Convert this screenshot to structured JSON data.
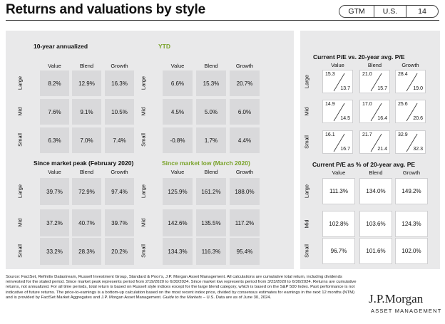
{
  "title": "Returns and valuations by style",
  "tags": [
    "GTM",
    "U.S.",
    "14"
  ],
  "col_headers": [
    "Value",
    "Blend",
    "Growth"
  ],
  "row_headers": [
    "Large",
    "Mid",
    "Small"
  ],
  "tables": {
    "ten_year": {
      "title": "10-year annualized",
      "rows": [
        [
          "8.2%",
          "12.9%",
          "16.3%"
        ],
        [
          "7.6%",
          "9.1%",
          "10.5%"
        ],
        [
          "6.3%",
          "7.0%",
          "7.4%"
        ]
      ]
    },
    "ytd": {
      "title": "YTD",
      "rows": [
        [
          "6.6%",
          "15.3%",
          "20.7%"
        ],
        [
          "4.5%",
          "5.0%",
          "6.0%"
        ],
        [
          "-0.8%",
          "1.7%",
          "4.4%"
        ]
      ]
    },
    "since_peak": {
      "title": "Since market peak (February 2020)",
      "rows": [
        [
          "39.7%",
          "72.9%",
          "97.4%"
        ],
        [
          "37.2%",
          "40.7%",
          "39.7%"
        ],
        [
          "33.2%",
          "28.3%",
          "20.2%"
        ]
      ]
    },
    "since_low": {
      "title": "Since market low (March 2020)",
      "rows": [
        [
          "125.9%",
          "161.2%",
          "188.0%"
        ],
        [
          "142.6%",
          "135.5%",
          "117.2%"
        ],
        [
          "134.3%",
          "116.3%",
          "95.4%"
        ]
      ]
    },
    "pe_vs_avg": {
      "title": "Current P/E vs. 20-year avg. P/E",
      "rows": [
        [
          [
            "15.3",
            "13.7"
          ],
          [
            "21.0",
            "15.7"
          ],
          [
            "28.4",
            "19.0"
          ]
        ],
        [
          [
            "14.9",
            "14.5"
          ],
          [
            "17.0",
            "16.4"
          ],
          [
            "25.6",
            "20.6"
          ]
        ],
        [
          [
            "16.1",
            "16.7"
          ],
          [
            "21.7",
            "21.4"
          ],
          [
            "32.9",
            "32.3"
          ]
        ]
      ]
    },
    "pe_pct": {
      "title": "Current P/E as % of 20-year avg. PE",
      "rows": [
        [
          "111.3%",
          "134.0%",
          "149.2%"
        ],
        [
          "102.8%",
          "103.6%",
          "124.3%"
        ],
        [
          "96.7%",
          "101.6%",
          "102.0%"
        ]
      ]
    }
  },
  "footer": {
    "text": "Source: FactSet, Refinitiv Datastream, Russell Investment Group, Standard & Poor’s, J.P. Morgan Asset Management. All calculations are cumulative total return, including dividends  reinvested for the stated period. Since market peak represents period from 2/19/2020 to 6/30/2024. Since market low represents period from 3/23/2020 to 6/30/2024. Returns are cumulative returns, not annualized. For all time periods, total return is based on Russell style indices except for the large blend category, which is based on the S&P 500 Index. Past performance is not indicative of future returns. The price-to-earnings is a bottom-up calculation based on the most recent index price, divided by consensus estimates for earnings in the next 12 months (NTM) and is provided by FactSet Market Aggregates and J.P. Morgan Asset Management.",
    "italic": "Guide to the Markets",
    "tail": " – U.S. Data are as of June 30, 2024."
  },
  "logo": {
    "name": "J.P.Morgan",
    "sub": "ASSET MANAGEMENT"
  }
}
